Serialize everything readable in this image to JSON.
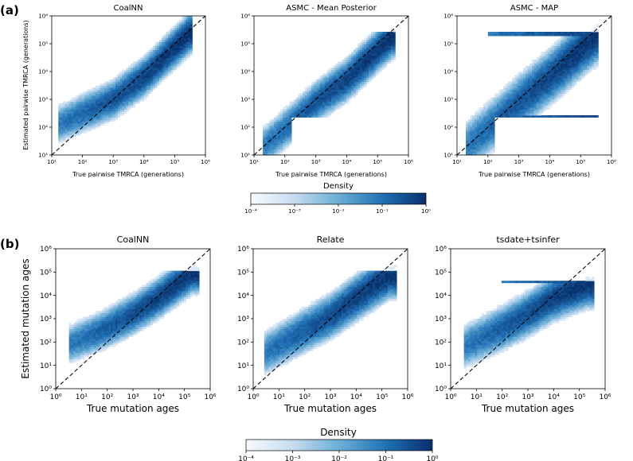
{
  "panels": [
    {
      "label": "(a)",
      "colorbar": {
        "title": "Density",
        "ticks": [
          "10⁻⁴",
          "10⁻³",
          "10⁻²",
          "10⁻¹",
          "10⁰"
        ]
      },
      "subplots": [
        {
          "title": "CoalNN",
          "xlabel": "True pairwise TMRCA (generations)",
          "ylabel": "Estimated pairwise TMRCA (generations)",
          "xticks": [
            "10¹",
            "10²",
            "10³",
            "10⁴",
            "10⁵",
            "10⁶"
          ],
          "yticks": [
            "10¹",
            "10²",
            "10³",
            "10⁴",
            "10⁵",
            "10⁶"
          ]
        },
        {
          "title": "ASMC - Mean Posterior",
          "xlabel": "True pairwise TMRCA (generations)",
          "ylabel": "",
          "xticks": [
            "10¹",
            "10²",
            "10³",
            "10⁴",
            "10⁵",
            "10⁶"
          ],
          "yticks": [
            "10¹",
            "10²",
            "10³",
            "10⁴",
            "10⁵",
            "10⁶"
          ]
        },
        {
          "title": "ASMC - MAP",
          "xlabel": "True pairwise TMRCA (generations)",
          "ylabel": "",
          "xticks": [
            "10¹",
            "10²",
            "10³",
            "10⁴",
            "10⁵",
            "10⁶"
          ],
          "yticks": [
            "10¹",
            "10²",
            "10³",
            "10⁴",
            "10⁵",
            "10⁶"
          ]
        }
      ]
    },
    {
      "label": "(b)",
      "colorbar": {
        "title": "Density",
        "ticks": [
          "10⁻⁴",
          "10⁻³",
          "10⁻²",
          "10⁻¹",
          "10⁰"
        ]
      },
      "subplots": [
        {
          "title": "CoalNN",
          "xlabel": "True mutation ages",
          "ylabel": "Estimated mutation ages",
          "xticks": [
            "10⁰",
            "10¹",
            "10²",
            "10³",
            "10⁴",
            "10⁵",
            "10⁶"
          ],
          "yticks": [
            "10⁰",
            "10¹",
            "10²",
            "10³",
            "10⁴",
            "10⁵",
            "10⁶"
          ]
        },
        {
          "title": "Relate",
          "xlabel": "True mutation ages",
          "ylabel": "",
          "xticks": [
            "10⁰",
            "10¹",
            "10²",
            "10³",
            "10⁴",
            "10⁵",
            "10⁶"
          ],
          "yticks": [
            "10⁰",
            "10¹",
            "10²",
            "10³",
            "10⁴",
            "10⁵",
            "10⁶"
          ]
        },
        {
          "title": "tsdate+tsinfer",
          "xlabel": "True mutation ages",
          "ylabel": "",
          "xticks": [
            "10⁰",
            "10¹",
            "10²",
            "10³",
            "10⁴",
            "10⁵",
            "10⁶"
          ],
          "yticks": [
            "10⁰",
            "10¹",
            "10²",
            "10³",
            "10⁴",
            "10⁵",
            "10⁶"
          ]
        }
      ]
    }
  ],
  "chart_data": [
    {
      "type": "heatmap",
      "title": "CoalNN",
      "panel": "(a)",
      "xlabel": "True pairwise TMRCA (generations)",
      "ylabel": "Estimated pairwise TMRCA (generations)",
      "xscale": "log",
      "yscale": "log",
      "xlim": [
        10,
        1000000
      ],
      "ylim": [
        10,
        1000000
      ],
      "diagonal": "y = x (dashed)",
      "density_model": {
        "x_range_log10": [
          1.2,
          5.6
        ],
        "trend": [
          [
            1.2,
            2.1
          ],
          [
            3.0,
            3.0
          ],
          [
            4.0,
            3.8
          ],
          [
            5.5,
            5.4
          ]
        ],
        "spread_log10": 0.33
      },
      "colorbar": {
        "label": "Density",
        "scale": "log",
        "range": [
          0.0001,
          1
        ]
      }
    },
    {
      "type": "heatmap",
      "title": "ASMC - Mean Posterior",
      "panel": "(a)",
      "xlabel": "True pairwise TMRCA (generations)",
      "xscale": "log",
      "yscale": "log",
      "xlim": [
        10,
        1000000
      ],
      "ylim": [
        10,
        1000000
      ],
      "diagonal": "y = x (dashed)",
      "density_model": {
        "x_range_log10": [
          1.3,
          5.6
        ],
        "trend": [
          [
            1.3,
            1.3
          ],
          [
            2.5,
            2.4
          ],
          [
            3.0,
            2.9
          ],
          [
            4.0,
            3.7
          ],
          [
            5.5,
            5.3
          ]
        ],
        "floor_log10": 2.4,
        "cap_log10": 5.35,
        "spread_log10": 0.35
      },
      "colorbar": {
        "label": "Density",
        "scale": "log",
        "range": [
          0.0001,
          1
        ]
      }
    },
    {
      "type": "heatmap",
      "title": "ASMC - MAP",
      "panel": "(a)",
      "xlabel": "True pairwise TMRCA (generations)",
      "xscale": "log",
      "yscale": "log",
      "xlim": [
        10,
        1000000
      ],
      "ylim": [
        10,
        1000000
      ],
      "diagonal": "y = x (dashed)",
      "density_model": {
        "x_range_log10": [
          1.3,
          5.6
        ],
        "trend": [
          [
            1.3,
            1.3
          ],
          [
            2.5,
            2.4
          ],
          [
            3.0,
            2.9
          ],
          [
            4.0,
            3.8
          ],
          [
            5.5,
            5.3
          ]
        ],
        "floor_log10": 2.4,
        "cap_log10": 5.35,
        "spread_log10": 0.45,
        "horizontal_bands_log10": [
          2.4,
          5.35
        ]
      },
      "colorbar": {
        "label": "Density",
        "scale": "log",
        "range": [
          0.0001,
          1
        ]
      }
    },
    {
      "type": "heatmap",
      "title": "CoalNN",
      "panel": "(b)",
      "xlabel": "True mutation ages",
      "ylabel": "Estimated mutation ages",
      "xscale": "log",
      "yscale": "log",
      "xlim": [
        1,
        1000000
      ],
      "ylim": [
        1,
        1000000
      ],
      "diagonal": "y = x (dashed)",
      "density_model": {
        "x_range_log10": [
          0.5,
          5.6
        ],
        "trend": [
          [
            0.5,
            1.9
          ],
          [
            2.0,
            2.6
          ],
          [
            3.0,
            3.2
          ],
          [
            4.0,
            3.9
          ],
          [
            5.3,
            5.0
          ]
        ],
        "cap_log10": 5.0,
        "spread_log10": 0.4
      },
      "colorbar": {
        "label": "Density",
        "scale": "log",
        "range": [
          0.0001,
          1
        ]
      }
    },
    {
      "type": "heatmap",
      "title": "Relate",
      "panel": "(b)",
      "xlabel": "True mutation ages",
      "xscale": "log",
      "yscale": "log",
      "xlim": [
        1,
        1000000
      ],
      "ylim": [
        1,
        1000000
      ],
      "diagonal": "y = x (dashed)",
      "density_model": {
        "x_range_log10": [
          0.4,
          5.6
        ],
        "trend": [
          [
            0.4,
            1.5
          ],
          [
            2.0,
            2.5
          ],
          [
            3.0,
            3.1
          ],
          [
            4.0,
            3.9
          ],
          [
            5.3,
            4.9
          ]
        ],
        "cap_log10": 5.0,
        "spread_log10": 0.45
      },
      "colorbar": {
        "label": "Density",
        "scale": "log",
        "range": [
          0.0001,
          1
        ]
      }
    },
    {
      "type": "heatmap",
      "title": "tsdate+tsinfer",
      "panel": "(b)",
      "xlabel": "True mutation ages",
      "xscale": "log",
      "yscale": "log",
      "xlim": [
        1,
        1000000
      ],
      "ylim": [
        1,
        1000000
      ],
      "diagonal": "y = x (dashed)",
      "density_model": {
        "x_range_log10": [
          0.5,
          5.6
        ],
        "trend": [
          [
            0.5,
            1.8
          ],
          [
            2.0,
            2.6
          ],
          [
            3.0,
            3.2
          ],
          [
            4.0,
            3.9
          ],
          [
            5.3,
            4.5
          ]
        ],
        "cap_log10": 4.6,
        "spread_log10": 0.45,
        "horizontal_bands_log10": [
          4.6
        ]
      },
      "colorbar": {
        "label": "Density",
        "scale": "log",
        "range": [
          0.0001,
          1
        ]
      }
    }
  ]
}
